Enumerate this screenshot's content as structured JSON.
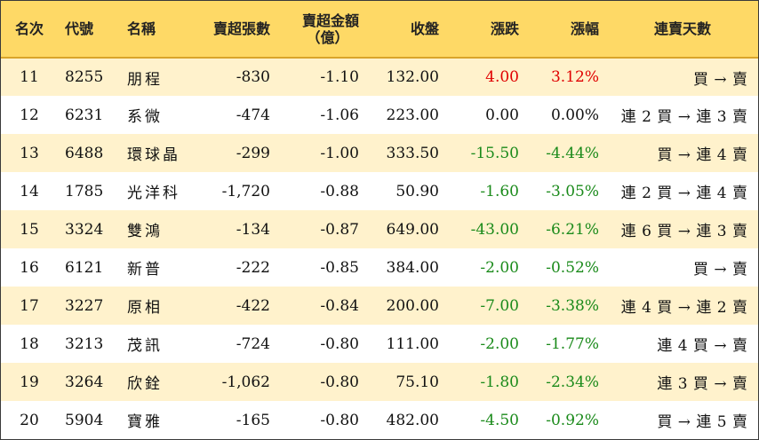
{
  "headers": {
    "rank": "名次",
    "code": "代號",
    "name": "名稱",
    "lots": "賣超張數",
    "amount_line1": "賣超金額",
    "amount_line2": "（億）",
    "close": "收盤",
    "change": "漲跌",
    "pct": "漲幅",
    "streak": "連賣天數"
  },
  "rows": [
    {
      "rank": "11",
      "code": "8255",
      "name": "朋程",
      "lots": "-830",
      "amount": "-1.10",
      "close": "132.00",
      "change": "4.00",
      "pct": "3.12%",
      "streak": "買 → 賣",
      "trend": "up"
    },
    {
      "rank": "12",
      "code": "6231",
      "name": "系微",
      "lots": "-474",
      "amount": "-1.06",
      "close": "223.00",
      "change": "0.00",
      "pct": "0.00%",
      "streak": "連 2 買 → 連 3 賣",
      "trend": "flat"
    },
    {
      "rank": "13",
      "code": "6488",
      "name": "環球晶",
      "lots": "-299",
      "amount": "-1.00",
      "close": "333.50",
      "change": "-15.50",
      "pct": "-4.44%",
      "streak": "買 → 連 4 賣",
      "trend": "down"
    },
    {
      "rank": "14",
      "code": "1785",
      "name": "光洋科",
      "lots": "-1,720",
      "amount": "-0.88",
      "close": "50.90",
      "change": "-1.60",
      "pct": "-3.05%",
      "streak": "連 2 買 → 連 4 賣",
      "trend": "down"
    },
    {
      "rank": "15",
      "code": "3324",
      "name": "雙鴻",
      "lots": "-134",
      "amount": "-0.87",
      "close": "649.00",
      "change": "-43.00",
      "pct": "-6.21%",
      "streak": "連 6 買 → 連 3 賣",
      "trend": "down"
    },
    {
      "rank": "16",
      "code": "6121",
      "name": "新普",
      "lots": "-222",
      "amount": "-0.85",
      "close": "384.00",
      "change": "-2.00",
      "pct": "-0.52%",
      "streak": "買 → 賣",
      "trend": "down"
    },
    {
      "rank": "17",
      "code": "3227",
      "name": "原相",
      "lots": "-422",
      "amount": "-0.84",
      "close": "200.00",
      "change": "-7.00",
      "pct": "-3.38%",
      "streak": "連 4 買 → 連 2 賣",
      "trend": "down"
    },
    {
      "rank": "18",
      "code": "3213",
      "name": "茂訊",
      "lots": "-724",
      "amount": "-0.80",
      "close": "111.00",
      "change": "-2.00",
      "pct": "-1.77%",
      "streak": "連 4 買 → 賣",
      "trend": "down"
    },
    {
      "rank": "19",
      "code": "3264",
      "name": "欣銓",
      "lots": "-1,062",
      "amount": "-0.80",
      "close": "75.10",
      "change": "-1.80",
      "pct": "-2.34%",
      "streak": "連 3 買 → 賣",
      "trend": "down"
    },
    {
      "rank": "20",
      "code": "5904",
      "name": "寶雅",
      "lots": "-165",
      "amount": "-0.80",
      "close": "482.00",
      "change": "-4.50",
      "pct": "-0.92%",
      "streak": "買 → 連 5 賣",
      "trend": "down"
    }
  ],
  "colors": {
    "header_bg": "#fed966",
    "row_alt_bg": "#fff2cc",
    "up": "#e00000",
    "down": "#1a8a1a"
  }
}
